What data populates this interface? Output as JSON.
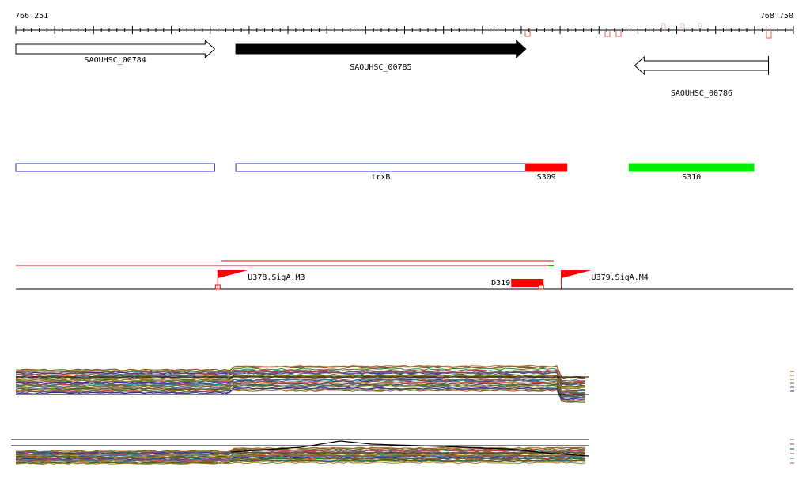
{
  "ruler": {
    "start_label": "766 251",
    "end_label": "768 750",
    "start": 766251,
    "end": 768750
  },
  "genes": [
    {
      "label": "SAOUHSC_00784",
      "start": 766251,
      "end": 766890,
      "strand": "+",
      "fill": "#ffffff"
    },
    {
      "label": "SAOUHSC_00785",
      "start": 766958,
      "end": 767890,
      "strand": "+",
      "fill": "#000000"
    },
    {
      "label": "SAOUHSC_00786",
      "start": 768240,
      "end": 768670,
      "strand": "-",
      "fill": "#ffffff"
    }
  ],
  "regions": [
    {
      "label": "",
      "start": 766251,
      "end": 766890,
      "color": "#2b2bb8",
      "filled": false
    },
    {
      "label": "trxB",
      "start": 766958,
      "end": 767890,
      "color": "#2b2bb8",
      "filled": false
    },
    {
      "label": "S309",
      "start": 767890,
      "end": 768022,
      "color": "#ff0000",
      "filled": true
    },
    {
      "label": "S310",
      "start": 768222,
      "end": 768623,
      "color": "#00ee00",
      "filled": true
    }
  ],
  "promoters": [
    {
      "label": "U378.SigA.M3",
      "pos": 766900
    },
    {
      "label": "U379.SigA.M4",
      "pos": 768004
    }
  ],
  "terminators": [
    {
      "label": "D319",
      "start": 767843,
      "end": 767947
    }
  ],
  "colors": {
    "promoter": "#ff0000",
    "terminator": "#ff0000",
    "peaks": "#e06050",
    "axis": "#000000"
  }
}
